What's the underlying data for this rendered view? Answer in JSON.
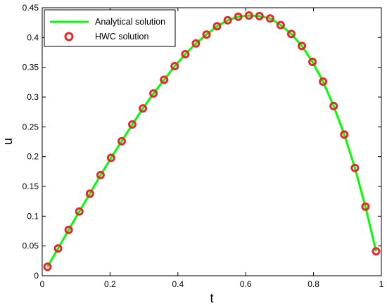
{
  "chart_data": {
    "type": "line",
    "title": "",
    "xlabel": "t",
    "ylabel": "u",
    "xlim": [
      0,
      1
    ],
    "ylim": [
      0,
      0.45
    ],
    "x_ticks": [
      "0",
      "0.2",
      "0.4",
      "0.6",
      "0.8",
      "1"
    ],
    "y_ticks": [
      "0",
      "0.05",
      "0.1",
      "0.15",
      "0.2",
      "0.25",
      "0.3",
      "0.35",
      "0.4",
      "0.45"
    ],
    "grid": false,
    "legend_position": "top-left",
    "series": [
      {
        "name": "Analytical solution",
        "style": "line",
        "color": "#00ff00",
        "x": [
          0.0156,
          0.0469,
          0.0781,
          0.1094,
          0.1406,
          0.1719,
          0.2031,
          0.2344,
          0.2656,
          0.2969,
          0.3281,
          0.3594,
          0.3906,
          0.4219,
          0.4531,
          0.4844,
          0.5156,
          0.5469,
          0.5781,
          0.6094,
          0.6406,
          0.6719,
          0.7031,
          0.7344,
          0.7656,
          0.7969,
          0.8281,
          0.8594,
          0.8906,
          0.9219,
          0.9531,
          0.9844
        ],
        "y": [
          0.015,
          0.046,
          0.077,
          0.108,
          0.138,
          0.169,
          0.198,
          0.226,
          0.254,
          0.281,
          0.306,
          0.329,
          0.352,
          0.372,
          0.39,
          0.405,
          0.419,
          0.429,
          0.435,
          0.437,
          0.436,
          0.432,
          0.421,
          0.406,
          0.386,
          0.359,
          0.326,
          0.285,
          0.237,
          0.181,
          0.116,
          0.041
        ]
      },
      {
        "name": "HWC solution",
        "style": "markers",
        "color": "#e8272b",
        "x": [
          0.0156,
          0.0469,
          0.0781,
          0.1094,
          0.1406,
          0.1719,
          0.2031,
          0.2344,
          0.2656,
          0.2969,
          0.3281,
          0.3594,
          0.3906,
          0.4219,
          0.4531,
          0.4844,
          0.5156,
          0.5469,
          0.5781,
          0.6094,
          0.6406,
          0.6719,
          0.7031,
          0.7344,
          0.7656,
          0.7969,
          0.8281,
          0.8594,
          0.8906,
          0.9219,
          0.9531,
          0.9844
        ],
        "y": [
          0.015,
          0.046,
          0.077,
          0.108,
          0.138,
          0.169,
          0.198,
          0.226,
          0.254,
          0.281,
          0.306,
          0.329,
          0.352,
          0.372,
          0.39,
          0.405,
          0.419,
          0.429,
          0.435,
          0.437,
          0.436,
          0.432,
          0.421,
          0.406,
          0.386,
          0.359,
          0.326,
          0.285,
          0.237,
          0.181,
          0.116,
          0.041
        ]
      }
    ]
  }
}
